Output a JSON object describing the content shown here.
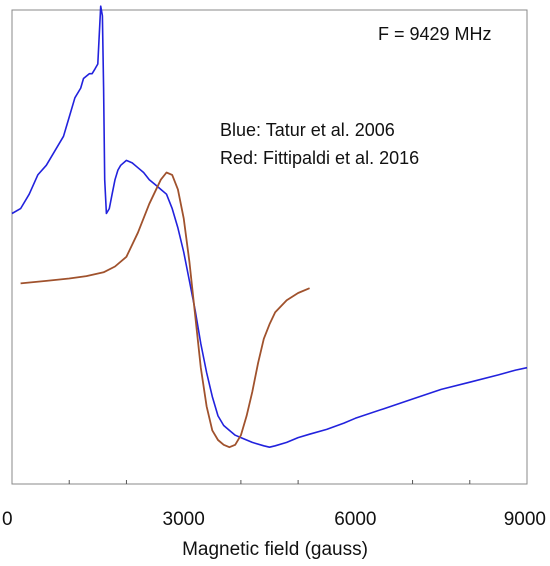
{
  "chart_data": {
    "type": "line",
    "title": "",
    "xlabel": "Magnetic field (gauss)",
    "ylabel": "",
    "xlim": [
      0,
      9000
    ],
    "ylim": [
      0,
      1
    ],
    "x_ticks": [
      0,
      3000,
      6000,
      9000
    ],
    "x_minor_ticks": [
      1000,
      2000,
      4000,
      5000,
      7000,
      8000
    ],
    "grid": false,
    "legend": "none",
    "annotations": {
      "frequency": "F = 9429 MHz",
      "blue_note": "Blue: Tatur et al. 2006",
      "red_note": "Red:  Fittipaldi et al. 2016"
    },
    "series": [
      {
        "color": "#2222dd",
        "x": [
          0,
          150,
          300,
          450,
          600,
          750,
          900,
          1000,
          1100,
          1200,
          1250,
          1300,
          1350,
          1400,
          1450,
          1500,
          1520,
          1550,
          1580,
          1600,
          1620,
          1650,
          1700,
          1750,
          1800,
          1850,
          1900,
          2000,
          2100,
          2200,
          2300,
          2400,
          2500,
          2600,
          2700,
          2800,
          2900,
          3000,
          3100,
          3200,
          3300,
          3400,
          3500,
          3600,
          3700,
          3800,
          3900,
          4000,
          4200,
          4400,
          4500,
          4600,
          4800,
          5000,
          5200,
          5500,
          5800,
          6000,
          6500,
          7000,
          7500,
          8000,
          8500,
          8800,
          9000
        ],
        "values": [
          0.47,
          0.48,
          0.51,
          0.55,
          0.57,
          0.6,
          0.63,
          0.67,
          0.71,
          0.73,
          0.75,
          0.755,
          0.76,
          0.76,
          0.77,
          0.78,
          0.83,
          0.9,
          0.88,
          0.73,
          0.54,
          0.47,
          0.48,
          0.51,
          0.54,
          0.56,
          0.57,
          0.58,
          0.575,
          0.565,
          0.555,
          0.54,
          0.53,
          0.52,
          0.51,
          0.48,
          0.44,
          0.39,
          0.33,
          0.27,
          0.2,
          0.14,
          0.09,
          0.05,
          0.03,
          0.02,
          0.01,
          0.005,
          -0.005,
          -0.012,
          -0.015,
          -0.012,
          -0.005,
          0.005,
          0.012,
          0.022,
          0.035,
          0.045,
          0.065,
          0.085,
          0.105,
          0.12,
          0.135,
          0.145,
          0.15
        ]
      },
      {
        "color": "#a0522d",
        "x": [
          150,
          600,
          1000,
          1300,
          1600,
          1800,
          2000,
          2200,
          2400,
          2600,
          2700,
          2800,
          2900,
          3000,
          3100,
          3200,
          3300,
          3400,
          3500,
          3600,
          3700,
          3800,
          3900,
          4000,
          4100,
          4200,
          4300,
          4400,
          4500,
          4600,
          4800,
          5000,
          5200
        ],
        "values": [
          0.325,
          0.33,
          0.335,
          0.34,
          0.348,
          0.36,
          0.38,
          0.43,
          0.49,
          0.54,
          0.555,
          0.55,
          0.52,
          0.46,
          0.37,
          0.26,
          0.15,
          0.07,
          0.02,
          0.0,
          -0.01,
          -0.015,
          -0.01,
          0.01,
          0.05,
          0.1,
          0.16,
          0.21,
          0.24,
          0.265,
          0.29,
          0.305,
          0.315
        ]
      }
    ]
  }
}
